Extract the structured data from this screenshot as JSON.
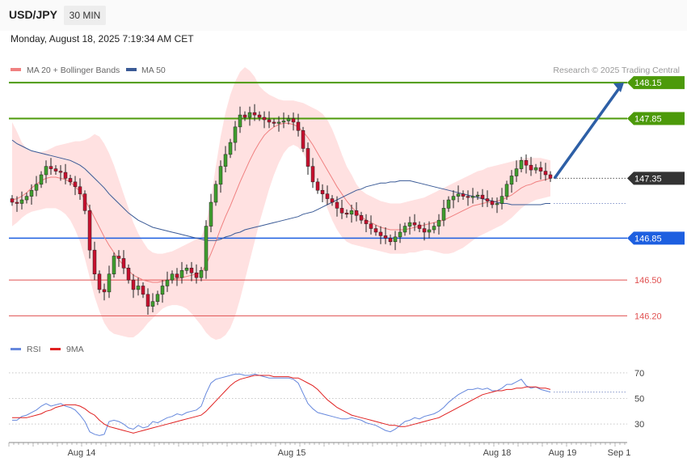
{
  "header": {
    "symbol": "USD/JPY",
    "timeframe": "30 MIN",
    "datetime": "Monday, August 18, 2025 7:19:34 AM CET",
    "copyright": "Research © 2025 Trading Central"
  },
  "colors": {
    "candle_up": "#3f9e2e",
    "candle_down": "#c8102e",
    "bb_fill": "#ffe1e1",
    "ma20": "#f08080",
    "ma50": "#3a5a96",
    "resistance": "#4c9a0a",
    "support": "#1d5fe0",
    "minor_level": "#e05050",
    "arrow": "#2d5fa6",
    "rsi": "#6688dd",
    "rsi_ma": "#e02020"
  },
  "chart_data": [
    {
      "type": "candlestick",
      "title": "USD/JPY",
      "legend": [
        {
          "name": "MA 20 + Bollinger Bands",
          "color": "#f08080"
        },
        {
          "name": "MA 50",
          "color": "#3a5a96"
        }
      ],
      "ylim": [
        146.0,
        148.3
      ],
      "levels": [
        {
          "value": 148.15,
          "label": "148.15",
          "kind": "resistance"
        },
        {
          "value": 147.85,
          "label": "147.85",
          "kind": "resistance"
        },
        {
          "value": 147.35,
          "label": "147.35",
          "kind": "last"
        },
        {
          "value": 146.85,
          "label": "146.85",
          "kind": "support"
        },
        {
          "value": 146.5,
          "label": "146.50",
          "kind": "minor"
        },
        {
          "value": 146.2,
          "label": "146.20",
          "kind": "minor"
        }
      ],
      "forecast_arrow": {
        "from": 147.35,
        "to": 148.15
      },
      "close": [
        147.15,
        147.14,
        147.17,
        147.2,
        147.25,
        147.3,
        147.38,
        147.45,
        147.43,
        147.41,
        147.4,
        147.35,
        147.32,
        147.28,
        147.22,
        147.08,
        146.75,
        146.55,
        146.42,
        146.4,
        146.55,
        146.7,
        146.68,
        146.6,
        146.5,
        146.42,
        146.45,
        146.38,
        146.28,
        146.32,
        146.38,
        146.45,
        146.5,
        146.55,
        146.52,
        146.58,
        146.6,
        146.56,
        146.52,
        146.58,
        146.95,
        147.15,
        147.3,
        147.45,
        147.55,
        147.65,
        147.78,
        147.88,
        147.86,
        147.9,
        147.88,
        147.86,
        147.84,
        147.82,
        147.81,
        147.82,
        147.83,
        147.85,
        147.82,
        147.75,
        147.6,
        147.45,
        147.32,
        147.25,
        147.22,
        147.18,
        147.15,
        147.1,
        147.06,
        147.05,
        147.08,
        147.04,
        147.0,
        146.97,
        146.93,
        146.9,
        146.87,
        146.85,
        146.82,
        146.86,
        146.9,
        146.95,
        146.98,
        146.96,
        146.93,
        146.9,
        146.92,
        146.95,
        147.0,
        147.1,
        147.17,
        147.2,
        147.22,
        147.2,
        147.19,
        147.2,
        147.21,
        147.18,
        147.16,
        147.13,
        147.14,
        147.2,
        147.3,
        147.37,
        147.43,
        147.5,
        147.46,
        147.42,
        147.44,
        147.41,
        147.38,
        147.35
      ],
      "ma20": [
        147.17,
        147.18,
        147.2,
        147.23,
        147.27,
        147.3,
        147.33,
        147.35,
        147.36,
        147.36,
        147.35,
        147.34,
        147.32,
        147.28,
        147.24,
        147.17,
        147.1,
        147.02,
        146.94,
        146.86,
        146.79,
        146.73,
        146.67,
        146.62,
        146.58,
        146.54,
        146.52,
        146.5,
        146.49,
        146.48,
        146.48,
        146.49,
        146.5,
        146.51,
        146.51,
        146.52,
        146.53,
        146.54,
        146.55,
        146.56,
        146.63,
        146.72,
        146.82,
        146.93,
        147.03,
        147.12,
        147.22,
        147.32,
        147.41,
        147.5,
        147.58,
        147.65,
        147.71,
        147.75,
        147.78,
        147.8,
        147.81,
        147.81,
        147.8,
        147.78,
        147.74,
        147.69,
        147.63,
        147.56,
        147.49,
        147.42,
        147.35,
        147.28,
        147.22,
        147.16,
        147.11,
        147.07,
        147.03,
        147.0,
        146.98,
        146.96,
        146.94,
        146.93,
        146.92,
        146.92,
        146.92,
        146.92,
        146.93,
        146.94,
        146.95,
        146.96,
        146.97,
        146.98,
        146.99,
        147.0,
        147.02,
        147.04,
        147.06,
        147.08,
        147.1,
        147.12,
        147.13,
        147.14,
        147.15,
        147.15,
        147.16,
        147.17,
        147.19,
        147.21,
        147.24,
        147.27,
        147.29,
        147.3,
        147.32,
        147.33,
        147.34,
        147.35
      ],
      "bb_upper": [
        147.82,
        147.74,
        147.65,
        147.6,
        147.58,
        147.57,
        147.57,
        147.58,
        147.6,
        147.62,
        147.63,
        147.64,
        147.65,
        147.66,
        147.66,
        147.67,
        147.69,
        147.72,
        147.7,
        147.64,
        147.56,
        147.46,
        147.34,
        147.22,
        147.1,
        146.98,
        146.89,
        146.82,
        146.76,
        146.73,
        146.72,
        146.72,
        146.73,
        146.74,
        146.76,
        146.78,
        146.8,
        146.82,
        146.84,
        146.86,
        146.96,
        147.18,
        147.45,
        147.7,
        147.9,
        148.05,
        148.16,
        148.24,
        148.28,
        148.25,
        148.2,
        148.12,
        148.08,
        148.05,
        148.03,
        148.01,
        148.0,
        148.0,
        148.0,
        147.99,
        147.98,
        147.96,
        147.94,
        147.92,
        147.89,
        147.84,
        147.76,
        147.66,
        147.55,
        147.45,
        147.38,
        147.3,
        147.25,
        147.22,
        147.2,
        147.18,
        147.16,
        147.15,
        147.14,
        147.14,
        147.14,
        147.15,
        147.16,
        147.17,
        147.18,
        147.19,
        147.21,
        147.23,
        147.25,
        147.27,
        147.29,
        147.31,
        147.33,
        147.35,
        147.37,
        147.39,
        147.41,
        147.42,
        147.44,
        147.45,
        147.46,
        147.47,
        147.48,
        147.49,
        147.5,
        147.51,
        147.52,
        147.52,
        147.52,
        147.52,
        147.51,
        147.5
      ],
      "bb_lower": [
        146.95,
        146.98,
        147.02,
        147.05,
        147.07,
        147.08,
        147.09,
        147.1,
        147.1,
        147.1,
        147.08,
        147.05,
        147.0,
        146.92,
        146.82,
        146.68,
        146.52,
        146.36,
        146.24,
        146.14,
        146.08,
        146.05,
        146.04,
        146.03,
        146.02,
        146.02,
        146.05,
        146.09,
        146.14,
        146.18,
        146.22,
        146.26,
        146.28,
        146.29,
        146.29,
        146.28,
        146.26,
        146.22,
        146.17,
        146.12,
        146.06,
        146.02,
        146.0,
        146.01,
        146.04,
        146.1,
        146.2,
        146.34,
        146.5,
        146.66,
        146.82,
        146.98,
        147.12,
        147.26,
        147.38,
        147.48,
        147.56,
        147.61,
        147.63,
        147.61,
        147.56,
        147.49,
        147.4,
        147.3,
        147.2,
        147.1,
        147.0,
        146.92,
        146.86,
        146.82,
        146.8,
        146.79,
        146.78,
        146.77,
        146.76,
        146.75,
        146.74,
        146.73,
        146.72,
        146.72,
        146.72,
        146.72,
        146.73,
        146.73,
        146.74,
        146.75,
        146.75,
        146.74,
        146.73,
        146.72,
        146.72,
        146.73,
        146.75,
        146.77,
        146.8,
        146.83,
        146.86,
        146.88,
        146.9,
        146.92,
        146.94,
        146.96,
        146.99,
        147.02,
        147.06,
        147.1,
        147.13,
        147.15,
        147.17,
        147.18,
        147.19,
        147.2
      ],
      "ma50": [
        147.67,
        147.64,
        147.62,
        147.6,
        147.58,
        147.57,
        147.56,
        147.55,
        147.54,
        147.53,
        147.52,
        147.51,
        147.5,
        147.48,
        147.46,
        147.43,
        147.39,
        147.35,
        147.31,
        147.27,
        147.22,
        147.18,
        147.14,
        147.1,
        147.06,
        147.03,
        147.0,
        146.98,
        146.96,
        146.94,
        146.93,
        146.92,
        146.91,
        146.9,
        146.89,
        146.88,
        146.87,
        146.86,
        146.85,
        146.84,
        146.83,
        146.83,
        146.83,
        146.84,
        146.86,
        146.87,
        146.89,
        146.9,
        146.92,
        146.93,
        146.94,
        146.95,
        146.96,
        146.97,
        146.98,
        146.99,
        147.0,
        147.01,
        147.02,
        147.03,
        147.05,
        147.06,
        147.07,
        147.09,
        147.11,
        147.13,
        147.15,
        147.17,
        147.19,
        147.21,
        147.23,
        147.25,
        147.26,
        147.28,
        147.29,
        147.3,
        147.31,
        147.31,
        147.32,
        147.32,
        147.33,
        147.33,
        147.33,
        147.32,
        147.31,
        147.3,
        147.29,
        147.28,
        147.27,
        147.26,
        147.25,
        147.24,
        147.23,
        147.22,
        147.21,
        147.2,
        147.19,
        147.18,
        147.17,
        147.16,
        147.15,
        147.14,
        147.14,
        147.13,
        147.13,
        147.13,
        147.13,
        147.13,
        147.13,
        147.13,
        147.14,
        147.14
      ]
    },
    {
      "type": "line",
      "legend": [
        {
          "name": "RSI",
          "color": "#6688dd"
        },
        {
          "name": "9MA",
          "color": "#e02020"
        }
      ],
      "ylim": [
        20,
        80
      ],
      "yticks": [
        30,
        50,
        70
      ],
      "x_ticks": [
        "Aug 14",
        "Aug 15",
        "Aug 18",
        "Aug 19",
        "Sep 1"
      ],
      "series": [
        {
          "name": "RSI",
          "values": [
            33,
            33,
            36,
            37,
            39,
            41,
            44,
            46,
            44,
            45,
            46,
            44,
            43,
            41,
            37,
            32,
            24,
            22,
            21,
            22,
            32,
            33,
            32,
            30,
            27,
            26,
            29,
            27,
            28,
            32,
            31,
            33,
            35,
            36,
            38,
            37,
            39,
            40,
            41,
            44,
            54,
            62,
            65,
            66,
            67,
            68,
            69,
            69,
            68,
            68,
            69,
            68,
            67,
            66,
            66,
            66,
            66,
            66,
            65,
            62,
            54,
            46,
            42,
            39,
            38,
            37,
            36,
            35,
            34,
            34,
            35,
            34,
            33,
            31,
            30,
            29,
            27,
            25,
            24,
            26,
            29,
            32,
            33,
            35,
            34,
            36,
            37,
            38,
            40,
            43,
            47,
            50,
            53,
            55,
            57,
            57,
            58,
            57,
            58,
            56,
            56,
            58,
            61,
            61,
            63,
            65,
            60,
            58,
            59,
            57,
            56,
            55
          ]
        },
        {
          "name": "9MA",
          "values": [
            35,
            35,
            35,
            35,
            36,
            37,
            38,
            40,
            41,
            43,
            44,
            45,
            45,
            45,
            44,
            42,
            39,
            37,
            33,
            30,
            28,
            27,
            26,
            25,
            24,
            23,
            24,
            25,
            26,
            27,
            28,
            29,
            30,
            31,
            32,
            33,
            34,
            35,
            36,
            37,
            40,
            44,
            48,
            52,
            56,
            60,
            63,
            65,
            66,
            67,
            68,
            68,
            68,
            68,
            67,
            67,
            67,
            67,
            66,
            66,
            64,
            62,
            60,
            57,
            53,
            49,
            46,
            43,
            41,
            39,
            37,
            36,
            35,
            34,
            33,
            32,
            31,
            30,
            29,
            29,
            28,
            28,
            29,
            30,
            31,
            32,
            33,
            34,
            35,
            37,
            39,
            41,
            43,
            45,
            47,
            49,
            51,
            53,
            54,
            55,
            56,
            56,
            57,
            57,
            58,
            58,
            59,
            59,
            59,
            58,
            58,
            57
          ]
        }
      ]
    }
  ]
}
